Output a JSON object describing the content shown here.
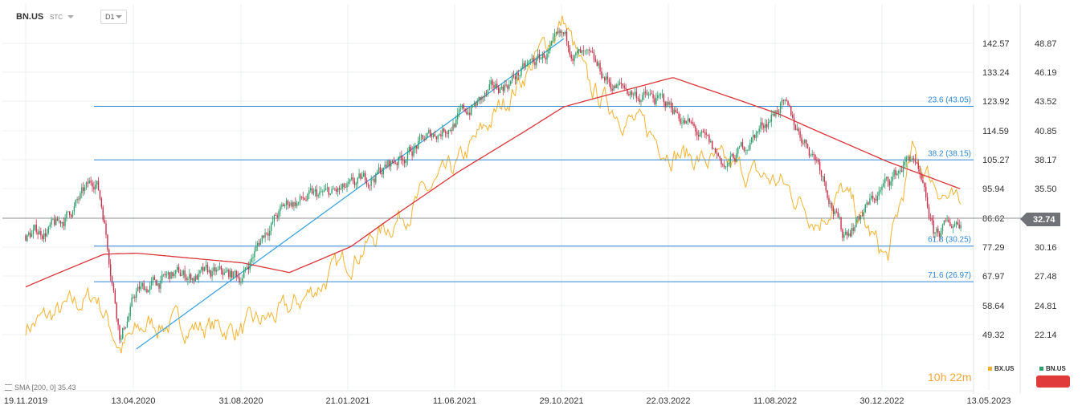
{
  "header": {
    "symbol": "BN.US",
    "source": "STC",
    "timeframe": "D1"
  },
  "indicator_label": "SMA [200, 0] 35.43",
  "clock": {
    "hours": "10",
    "h": "h",
    "minutes": "22",
    "m": "m"
  },
  "legend": {
    "bx": "BX.US",
    "bn": "BN.US"
  },
  "last_price": "32.74",
  "colors": {
    "bn_up": "#2e9e6a",
    "bn_down": "#c6304a",
    "bx": "#f2b331",
    "sma": "#d93438",
    "fib": "#2e86d6",
    "trend": "#2e9fe0",
    "price_line": "#8c9095"
  },
  "chart_data": {
    "type": "line",
    "title": "BN.US",
    "xlabel": "",
    "ylabel": "",
    "x_ticks": [
      "19.11.2019",
      "13.04.2020",
      "31.08.2020",
      "21.01.2021",
      "11.06.2021",
      "29.10.2021",
      "22.03.2022",
      "11.08.2022",
      "30.12.2022",
      "13.05.2023"
    ],
    "y_left_ticks": [
      "142.57",
      "133.24",
      "123.92",
      "114.59",
      "105.27",
      "95.94",
      "86.62",
      "77.29",
      "67.97",
      "58.64",
      "49.32"
    ],
    "y_right_ticks": [
      "48.87",
      "46.19",
      "43.52",
      "40.85",
      "38.17",
      "35.50",
      "32.74",
      "30.16",
      "27.48",
      "24.81",
      "22.14"
    ],
    "ylim_bn": [
      20.5,
      50.5
    ],
    "ylim_bx": [
      40,
      158
    ],
    "grid": true,
    "fib_levels": [
      {
        "label": "23.6 (43.05)",
        "value": 43.05
      },
      {
        "label": "38.2 (38.15)",
        "value": 38.15
      },
      {
        "label": "61.8 (30.25)",
        "value": 30.25
      },
      {
        "label": "71.6 (26.97)",
        "value": 26.97
      }
    ],
    "trendline": {
      "start": [
        "13.04.2020",
        20.8
      ],
      "end": [
        "29.10.2021",
        49.3
      ]
    },
    "last_value": 32.74,
    "series": [
      {
        "name": "BN.US",
        "kind": "candles",
        "x": [
          "19.11.2019",
          "01.01.2020",
          "10.02.2020",
          "20.02.2020",
          "01.03.2020",
          "23.03.2020",
          "13.04.2020",
          "01.06.2020",
          "31.08.2020",
          "01.10.2020",
          "01.11.2020",
          "21.01.2021",
          "11.06.2021",
          "29.10.2021",
          "01.12.2021",
          "01.01.2022",
          "22.03.2022",
          "01.06.2022",
          "11.08.2022",
          "01.10.2022",
          "01.11.2022",
          "30.12.2022",
          "01.02.2023",
          "01.03.2023",
          "07.04.2023"
        ],
        "values": [
          31.2,
          32.0,
          35.5,
          36.5,
          33.0,
          22.0,
          26.0,
          27.5,
          27.5,
          31.8,
          34.2,
          35.3,
          42.0,
          49.0,
          47.0,
          45.0,
          43.0,
          37.5,
          43.3,
          38.0,
          31.2,
          36.0,
          38.6,
          31.2,
          32.74
        ]
      },
      {
        "name": "SMA [200, 0]",
        "kind": "line",
        "x": [
          "19.11.2019",
          "01.03.2020",
          "13.04.2020",
          "31.08.2020",
          "01.11.2020",
          "21.01.2021",
          "11.06.2021",
          "29.10.2021",
          "22.03.2022",
          "11.08.2022",
          "30.12.2022",
          "07.04.2023"
        ],
        "values": [
          26.5,
          29.5,
          29.6,
          28.7,
          27.8,
          30.2,
          37.0,
          43.0,
          45.7,
          42.3,
          38.0,
          35.43
        ]
      },
      {
        "name": "BX.US",
        "kind": "line",
        "x": [
          "19.11.2019",
          "01.01.2020",
          "20.02.2020",
          "23.03.2020",
          "01.05.2020",
          "31.08.2020",
          "01.11.2020",
          "21.01.2021",
          "11.06.2021",
          "29.10.2021",
          "01.12.2021",
          "22.03.2022",
          "11.08.2022",
          "01.10.2022",
          "01.11.2022",
          "30.12.2022",
          "01.02.2023",
          "07.04.2023"
        ],
        "values": [
          52,
          56,
          62,
          45,
          53,
          51,
          57,
          74,
          103,
          150,
          128,
          108,
          98,
          86,
          95,
          73,
          107,
          88
        ]
      }
    ]
  }
}
